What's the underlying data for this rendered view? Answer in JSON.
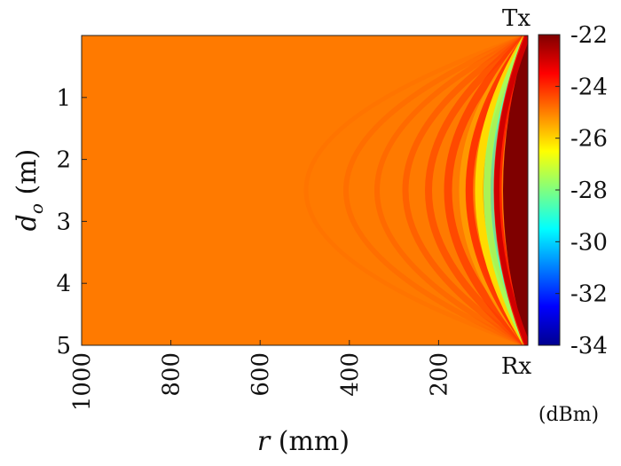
{
  "chart_data": {
    "type": "heatmap",
    "title": "",
    "xlabel": {
      "var": "r",
      "unit": "(mm)"
    },
    "ylabel": {
      "var": "d",
      "sub": "o",
      "unit": "(m)"
    },
    "x_ticks": [
      1000,
      800,
      600,
      400,
      200
    ],
    "y_ticks": [
      1,
      2,
      3,
      4,
      5
    ],
    "xlim": [
      1000,
      0
    ],
    "ylim": [
      0,
      5
    ],
    "colorbar": {
      "ticks": [
        -22,
        -24,
        -26,
        -28,
        -30,
        -32,
        -34
      ],
      "range": [
        -34,
        -22
      ],
      "unit_label": "(dBm)",
      "colormap": "jet"
    },
    "annotations": {
      "top_right": "Tx",
      "bottom_right": "Rx"
    },
    "field_description": {
      "background_dBm": -23.5,
      "near_source_dBm": -22.0,
      "fringe_min_dBm": -28.5,
      "colors": {
        "background": "#ff7a00",
        "near": "#7f0000"
      }
    }
  }
}
